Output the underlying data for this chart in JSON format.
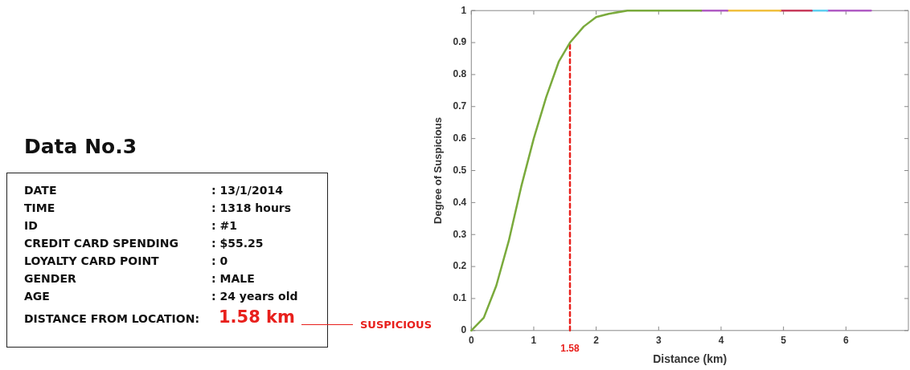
{
  "chart_data": [
    {
      "type": "other",
      "title": "Data No.3",
      "annotations": [
        "DATE",
        ": 13/1/2014",
        "TIME",
        ": 1318 hours",
        "ID",
        ": #1",
        "CREDIT CARD SPENDING",
        " : $55.25",
        "LOYALTY CARD POINT",
        ": 0",
        "GENDER",
        ": MALE",
        "AGE",
        ": 24 years old",
        "DISTANCE FROM LOCATION:",
        "1.58 km",
        "SUSPICIOUS"
      ]
    },
    {
      "type": "line",
      "xlabel": "Distance (km)",
      "ylabel": "Degree of Suspicious",
      "xlim": [
        0,
        7
      ],
      "ylim": [
        0,
        1
      ],
      "xticks": [
        0,
        1,
        2,
        3,
        4,
        5,
        6
      ],
      "yticks": [
        0,
        0.1,
        0.2,
        0.3,
        0.4,
        0.5,
        0.6,
        0.7,
        0.8,
        0.9,
        1
      ],
      "marker": "none",
      "legend": false,
      "series": [
        {
          "color": "#7aaa3c",
          "x": [
            0,
            0.2,
            0.4,
            0.6,
            0.8,
            1.0,
            1.2,
            1.4,
            1.58,
            1.8,
            2.0,
            2.2,
            2.5,
            3.0,
            3.68
          ],
          "values": [
            0,
            0.04,
            0.14,
            0.28,
            0.45,
            0.6,
            0.73,
            0.84,
            0.9,
            0.95,
            0.98,
            0.99,
            1,
            1,
            1
          ]
        },
        {
          "color": "#b05cc4",
          "x": [
            3.68,
            4.1
          ],
          "values": [
            1,
            1
          ]
        },
        {
          "color": "#f0c040",
          "x": [
            4.1,
            4.95
          ],
          "values": [
            1,
            1
          ]
        },
        {
          "color": "#c83c5c",
          "x": [
            4.95,
            5.45
          ],
          "values": [
            1,
            1
          ]
        },
        {
          "color": "#60d0f0",
          "x": [
            5.45,
            5.7
          ],
          "values": [
            1,
            1
          ]
        },
        {
          "color": "#b05cc4",
          "x": [
            5.7,
            6.4
          ],
          "values": [
            1,
            1
          ]
        },
        {
          "color": "#e8201c",
          "line_style": "dashed",
          "x": [
            1.58,
            1.58
          ],
          "values": [
            0,
            0.9
          ]
        }
      ],
      "annotations": [
        {
          "text": "1.58",
          "x": 1.58,
          "y": 0
        }
      ]
    }
  ]
}
